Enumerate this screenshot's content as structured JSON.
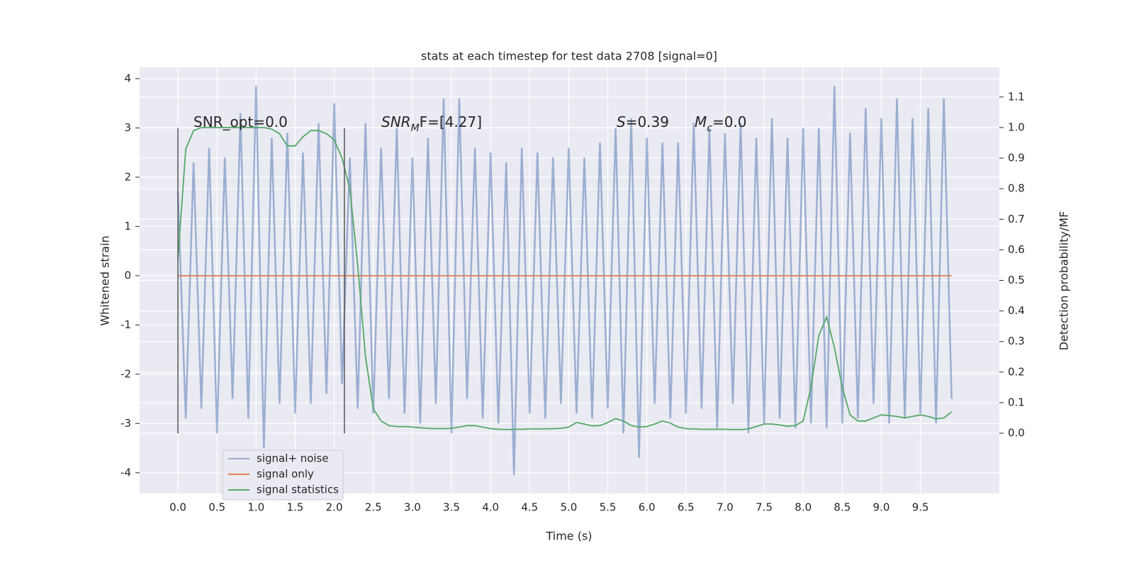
{
  "chart_data": {
    "type": "line",
    "title": "stats at each timestep for test data 2708 [signal=0]",
    "xlabel": "Time (s)",
    "ylabel": "Whitened strain",
    "y2label": "Detection probability/MF",
    "xlim": [
      -0.49,
      10.51
    ],
    "ylim": [
      -4.42,
      4.23
    ],
    "y2lim": [
      -0.197,
      1.197
    ],
    "xticks": [
      {
        "value": 0,
        "label": "0.0"
      },
      0.5,
      {
        "value": 1,
        "label": "1.0"
      },
      1.5,
      {
        "value": 2,
        "label": "2.0"
      },
      2.5,
      {
        "value": 3,
        "label": "3.0"
      },
      3.5,
      {
        "value": 4,
        "label": "4.0"
      },
      4.5,
      {
        "value": 5,
        "label": "5.0"
      },
      5.5,
      {
        "value": 6,
        "label": "6.0"
      },
      6.5,
      {
        "value": 7,
        "label": "7.0"
      },
      7.5,
      {
        "value": 8,
        "label": "8.0"
      },
      8.5,
      {
        "value": 9,
        "label": "9.0"
      },
      9.5
    ],
    "yticks": [
      -4,
      -3,
      -2,
      -1,
      0,
      1,
      2,
      3,
      4
    ],
    "y2ticks": [
      {
        "value": 0,
        "label": "0.0"
      },
      0.1,
      0.2,
      0.3,
      0.4,
      0.5,
      0.6,
      0.7,
      0.8,
      0.9,
      {
        "value": 1,
        "label": "1.0"
      },
      1.1
    ],
    "grid": true,
    "legend": "lower left",
    "vlines": {
      "x": [
        0,
        2.13
      ],
      "ymin": -3.2,
      "ymax": 3.0,
      "color": "#555555"
    },
    "annotations": [
      [
        "SNR_opt=0.0"
      ],
      [
        "SNR",
        "M",
        "F=[4.27]"
      ],
      [
        "S",
        "=0.39"
      ],
      [
        "M",
        "c",
        "=0.0"
      ]
    ],
    "x": [
      0,
      0.1,
      0.2,
      0.3,
      0.4,
      0.5,
      0.6,
      0.7,
      0.8,
      0.9,
      1,
      1.1,
      1.2,
      1.3,
      1.4,
      1.5,
      1.6,
      1.7,
      1.8,
      1.9,
      2,
      2.1,
      2.2,
      2.3,
      2.4,
      2.5,
      2.6,
      2.7,
      2.8,
      2.9,
      3,
      3.1,
      3.2,
      3.3,
      3.4,
      3.5,
      3.6,
      3.7,
      3.8,
      3.9,
      4,
      4.1,
      4.2,
      4.3,
      4.4,
      4.5,
      4.6,
      4.7,
      4.8,
      4.9,
      5,
      5.1,
      5.2,
      5.3,
      5.4,
      5.5,
      5.6,
      5.7,
      5.8,
      5.9,
      6,
      6.1,
      6.2,
      6.3,
      6.4,
      6.5,
      6.6,
      6.7,
      6.8,
      6.9,
      7,
      7.1,
      7.2,
      7.3,
      7.4,
      7.5,
      7.6,
      7.7,
      7.8,
      7.9,
      8,
      8.1,
      8.2,
      8.3,
      8.4,
      8.5,
      8.6,
      8.7,
      8.8,
      8.9,
      9,
      9.1,
      9.2,
      9.3,
      9.4,
      9.5,
      9.6,
      9.7,
      9.8,
      9.9
    ],
    "series": [
      {
        "name": "signal+ noise",
        "color": "#4c72b0",
        "opacity": 0.5,
        "values": [
          1.7,
          -2.9,
          2.3,
          -2.7,
          2.6,
          -3.2,
          2.4,
          -2.5,
          3.3,
          -2.9,
          3.85,
          -3.5,
          2.8,
          -2.6,
          2.9,
          -2.8,
          2.5,
          -2.6,
          3.1,
          -2.4,
          3.5,
          -2.2,
          2.4,
          -2.7,
          3.1,
          -2.8,
          2.6,
          -2.5,
          3.0,
          -2.8,
          2.4,
          -3.0,
          2.8,
          -2.6,
          3.6,
          -3.2,
          3.6,
          -2.5,
          2.6,
          -2.9,
          2.5,
          -3.0,
          2.3,
          -4.05,
          2.6,
          -2.8,
          2.5,
          -2.9,
          2.4,
          -2.6,
          2.6,
          -2.8,
          2.4,
          -2.9,
          2.7,
          -2.7,
          3.0,
          -3.2,
          3.2,
          -3.7,
          2.8,
          -2.6,
          2.7,
          -2.9,
          2.7,
          -2.8,
          3.1,
          -2.7,
          3.0,
          -3.1,
          2.9,
          -2.6,
          3.1,
          -3.2,
          2.8,
          -3.0,
          3.2,
          -2.9,
          2.8,
          -3.1,
          3.0,
          -3.0,
          3.0,
          -3.1,
          3.85,
          -3.0,
          2.9,
          -2.9,
          3.4,
          -2.6,
          3.2,
          -3.0,
          3.6,
          -2.9,
          3.2,
          -2.8,
          3.4,
          -3.0,
          3.6,
          -2.5
        ]
      },
      {
        "name": "signal only",
        "color": "#dd8452",
        "opacity": 1,
        "values": [
          0,
          0,
          0,
          0,
          0,
          0,
          0,
          0,
          0,
          0,
          0,
          0,
          0,
          0,
          0,
          0,
          0,
          0,
          0,
          0,
          0,
          0,
          0,
          0,
          0,
          0,
          0,
          0,
          0,
          0,
          0,
          0,
          0,
          0,
          0,
          0,
          0,
          0,
          0,
          0,
          0,
          0,
          0,
          0,
          0,
          0,
          0,
          0,
          0,
          0,
          0,
          0,
          0,
          0,
          0,
          0,
          0,
          0,
          0,
          0,
          0,
          0,
          0,
          0,
          0,
          0,
          0,
          0,
          0,
          0,
          0,
          0,
          0,
          0,
          0,
          0,
          0,
          0,
          0,
          0,
          0,
          0,
          0,
          0,
          0,
          0,
          0,
          0,
          0,
          0,
          0,
          0,
          0,
          0,
          0,
          0,
          0,
          0,
          0,
          0
        ]
      },
      {
        "name": "signal statistics",
        "color": "#55a868",
        "opacity": 1,
        "axis": "y2",
        "values": [
          0.57,
          0.93,
          0.99,
          1.0,
          1.0,
          1.0,
          1.0,
          1.0,
          1.0,
          1.0,
          1.0,
          1.0,
          0.995,
          0.98,
          0.94,
          0.94,
          0.97,
          0.99,
          0.99,
          0.98,
          0.96,
          0.9,
          0.8,
          0.55,
          0.25,
          0.08,
          0.04,
          0.025,
          0.022,
          0.022,
          0.02,
          0.018,
          0.016,
          0.015,
          0.015,
          0.016,
          0.02,
          0.025,
          0.025,
          0.02,
          0.015,
          0.013,
          0.012,
          0.013,
          0.013,
          0.014,
          0.014,
          0.014,
          0.015,
          0.016,
          0.02,
          0.035,
          0.03,
          0.024,
          0.025,
          0.035,
          0.048,
          0.04,
          0.025,
          0.02,
          0.022,
          0.03,
          0.04,
          0.033,
          0.02,
          0.015,
          0.014,
          0.013,
          0.013,
          0.013,
          0.013,
          0.012,
          0.012,
          0.014,
          0.022,
          0.03,
          0.03,
          0.027,
          0.023,
          0.025,
          0.04,
          0.15,
          0.32,
          0.38,
          0.28,
          0.15,
          0.06,
          0.04,
          0.04,
          0.05,
          0.06,
          0.058,
          0.055,
          0.05,
          0.055,
          0.06,
          0.055,
          0.047,
          0.05,
          0.07
        ]
      }
    ]
  }
}
